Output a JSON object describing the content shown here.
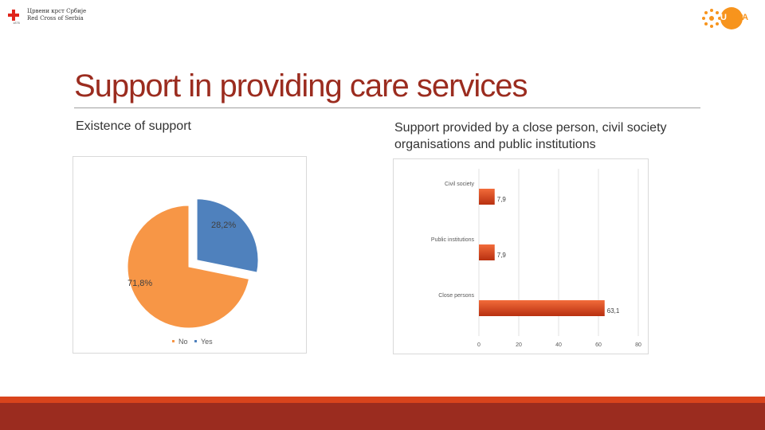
{
  "logos": {
    "left": {
      "line1": "Црвени крст Србије",
      "line2": "Red Cross of Serbia",
      "small": "1876",
      "icon": "red-cross-icon"
    },
    "right": {
      "text_prefix": "U",
      "text_main": "NFPA",
      "icon": "unfpa-emblem-icon"
    }
  },
  "title": "Support in providing care services",
  "left_subtitle": "Existence of support",
  "right_subtitle": "Support provided by a close person, civil society organisations and public institutions",
  "colors": {
    "title": "#9b2c1f",
    "pie_no": "#f79646",
    "pie_yes": "#4f81bd",
    "bar": "#d9441c",
    "footer": "#9b2c1f",
    "footer_band": "#d9441c"
  },
  "chart_data": [
    {
      "type": "pie",
      "title": "",
      "slices": [
        {
          "name": "No",
          "value": 71.8,
          "label": "71,8%"
        },
        {
          "name": "Yes",
          "value": 28.2,
          "label": "28,2%",
          "exploded": true
        }
      ],
      "legend": [
        "No",
        "Yes"
      ],
      "legend_position": "bottom"
    },
    {
      "type": "bar",
      "orientation": "horizontal",
      "title": "",
      "categories": [
        "Civil society",
        "Public institutions",
        "Close persons"
      ],
      "values": [
        7.9,
        7.9,
        63.1
      ],
      "value_labels": [
        "7,9",
        "7,9",
        "63,1"
      ],
      "xlim": [
        0,
        80
      ],
      "xticks": [
        "0",
        "20",
        "40",
        "60",
        "80"
      ],
      "grid": true
    }
  ]
}
